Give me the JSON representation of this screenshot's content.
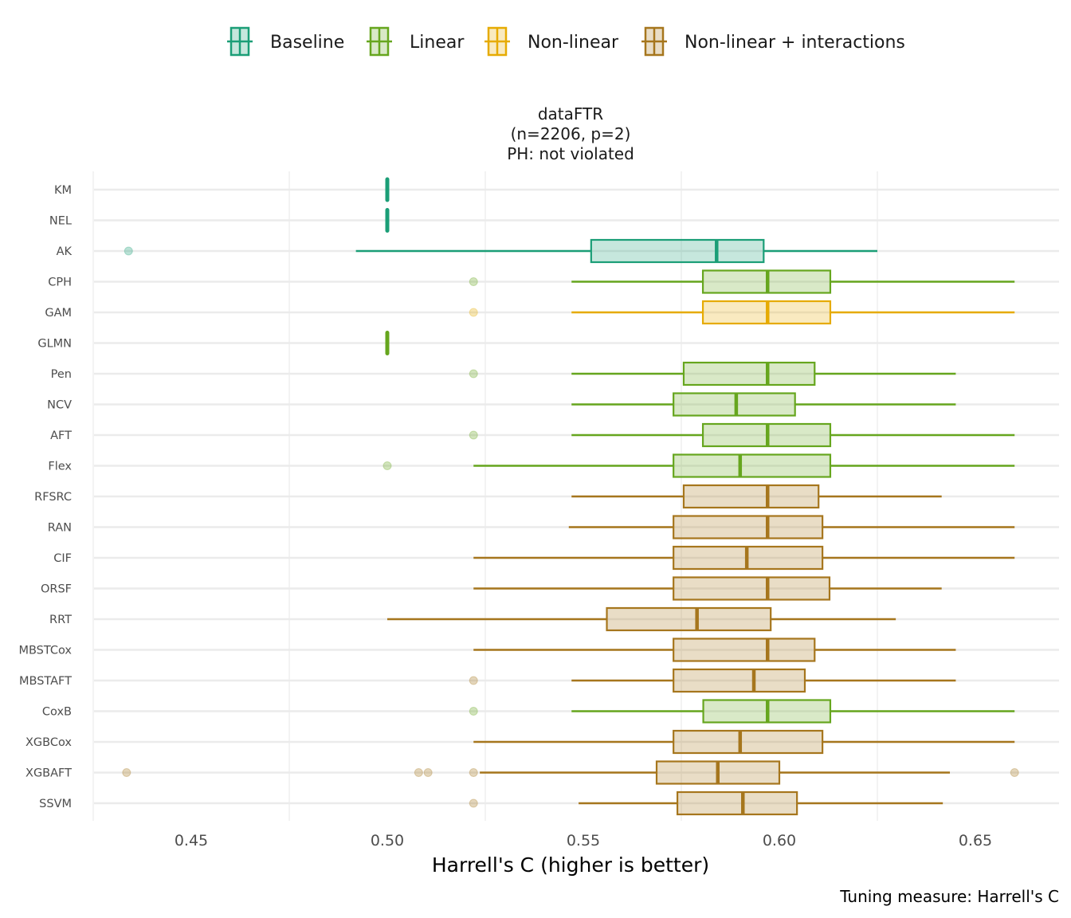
{
  "chart_data": {
    "type": "boxplot",
    "orientation": "horizontal",
    "title": "dataFTR",
    "subtitle_lines": [
      "dataFTR",
      "(n=2206, p=2)",
      "PH: not violated"
    ],
    "xlabel": "Harrell's C (higher is better)",
    "ylabel": "",
    "caption": "Tuning measure: Harrell's C",
    "xlim": [
      0.421,
      0.668
    ],
    "xticks": [
      0.45,
      0.5,
      0.55,
      0.6,
      0.65
    ],
    "xtick_labels": [
      "0.45",
      "0.50",
      "0.55",
      "0.60",
      "0.65"
    ],
    "x_gridlines": [
      0.425,
      0.475,
      0.525,
      0.575,
      0.625
    ],
    "grid": true,
    "legend_position": "top",
    "legend": [
      {
        "name": "Baseline",
        "color": "#1b9e77"
      },
      {
        "name": "Linear",
        "color": "#66a61e"
      },
      {
        "name": "Non-linear",
        "color": "#e6ab02"
      },
      {
        "name": "Non-linear + interactions",
        "color": "#a6761d"
      }
    ],
    "categories": [
      "KM",
      "NEL",
      "AK",
      "CPH",
      "GAM",
      "GLMN",
      "Pen",
      "NCV",
      "AFT",
      "Flex",
      "RFSRC",
      "RAN",
      "CIF",
      "ORSF",
      "RRT",
      "MBSTCox",
      "MBSTAFT",
      "CoxB",
      "XGBCox",
      "XGBAFT",
      "SSVM"
    ],
    "boxes": [
      {
        "model": "KM",
        "group": "Baseline",
        "whisker_low": 0.5,
        "q1": 0.5,
        "median": 0.5,
        "q3": 0.5,
        "whisker_high": 0.5,
        "outliers": []
      },
      {
        "model": "NEL",
        "group": "Baseline",
        "whisker_low": 0.5,
        "q1": 0.5,
        "median": 0.5,
        "q3": 0.5,
        "whisker_high": 0.5,
        "outliers": []
      },
      {
        "model": "AK",
        "group": "Baseline",
        "whisker_low": 0.492,
        "q1": 0.552,
        "median": 0.584,
        "q3": 0.596,
        "whisker_high": 0.625,
        "outliers": [
          0.434
        ]
      },
      {
        "model": "CPH",
        "group": "Linear",
        "whisker_low": 0.547,
        "q1": 0.5805,
        "median": 0.597,
        "q3": 0.613,
        "whisker_high": 0.66,
        "outliers": [
          0.522
        ]
      },
      {
        "model": "GAM",
        "group": "Non-linear",
        "whisker_low": 0.547,
        "q1": 0.5805,
        "median": 0.597,
        "q3": 0.613,
        "whisker_high": 0.66,
        "outliers": [
          0.522
        ]
      },
      {
        "model": "GLMN",
        "group": "Linear",
        "whisker_low": 0.5,
        "q1": 0.5,
        "median": 0.5,
        "q3": 0.5,
        "whisker_high": 0.5,
        "outliers": []
      },
      {
        "model": "Pen",
        "group": "Linear",
        "whisker_low": 0.547,
        "q1": 0.5756,
        "median": 0.597,
        "q3": 0.609,
        "whisker_high": 0.645,
        "outliers": [
          0.522
        ]
      },
      {
        "model": "NCV",
        "group": "Linear",
        "whisker_low": 0.547,
        "q1": 0.573,
        "median": 0.589,
        "q3": 0.604,
        "whisker_high": 0.645,
        "outliers": []
      },
      {
        "model": "AFT",
        "group": "Linear",
        "whisker_low": 0.547,
        "q1": 0.5805,
        "median": 0.597,
        "q3": 0.613,
        "whisker_high": 0.66,
        "outliers": [
          0.522
        ]
      },
      {
        "model": "Flex",
        "group": "Linear",
        "whisker_low": 0.522,
        "q1": 0.573,
        "median": 0.59,
        "q3": 0.613,
        "whisker_high": 0.66,
        "outliers": [
          0.5
        ]
      },
      {
        "model": "RFSRC",
        "group": "Non-linear + interactions",
        "whisker_low": 0.547,
        "q1": 0.5756,
        "median": 0.597,
        "q3": 0.61,
        "whisker_high": 0.6414,
        "outliers": []
      },
      {
        "model": "RAN",
        "group": "Non-linear + interactions",
        "whisker_low": 0.5463,
        "q1": 0.573,
        "median": 0.597,
        "q3": 0.611,
        "whisker_high": 0.66,
        "outliers": []
      },
      {
        "model": "CIF",
        "group": "Non-linear + interactions",
        "whisker_low": 0.522,
        "q1": 0.573,
        "median": 0.5917,
        "q3": 0.611,
        "whisker_high": 0.66,
        "outliers": []
      },
      {
        "model": "ORSF",
        "group": "Non-linear + interactions",
        "whisker_low": 0.522,
        "q1": 0.573,
        "median": 0.597,
        "q3": 0.6128,
        "whisker_high": 0.6414,
        "outliers": []
      },
      {
        "model": "RRT",
        "group": "Non-linear + interactions",
        "whisker_low": 0.5,
        "q1": 0.556,
        "median": 0.579,
        "q3": 0.5978,
        "whisker_high": 0.6297,
        "outliers": []
      },
      {
        "model": "MBSTCox",
        "group": "Non-linear + interactions",
        "whisker_low": 0.522,
        "q1": 0.573,
        "median": 0.597,
        "q3": 0.609,
        "whisker_high": 0.645,
        "outliers": []
      },
      {
        "model": "MBSTAFT",
        "group": "Non-linear + interactions",
        "whisker_low": 0.547,
        "q1": 0.573,
        "median": 0.5935,
        "q3": 0.6065,
        "whisker_high": 0.645,
        "outliers": [
          0.522
        ]
      },
      {
        "model": "CoxB",
        "group": "Linear",
        "whisker_low": 0.547,
        "q1": 0.5806,
        "median": 0.597,
        "q3": 0.613,
        "whisker_high": 0.66,
        "outliers": [
          0.522
        ]
      },
      {
        "model": "XGBCox",
        "group": "Non-linear + interactions",
        "whisker_low": 0.522,
        "q1": 0.573,
        "median": 0.59,
        "q3": 0.611,
        "whisker_high": 0.66,
        "outliers": []
      },
      {
        "model": "XGBAFT",
        "group": "Non-linear + interactions",
        "whisker_low": 0.5236,
        "q1": 0.5687,
        "median": 0.5843,
        "q3": 0.6,
        "whisker_high": 0.6435,
        "outliers": [
          0.4335,
          0.508,
          0.5104,
          0.522,
          0.66
        ]
      },
      {
        "model": "SSVM",
        "group": "Non-linear + interactions",
        "whisker_low": 0.5488,
        "q1": 0.574,
        "median": 0.5907,
        "q3": 0.6045,
        "whisker_high": 0.6417,
        "outliers": [
          0.522
        ]
      }
    ]
  }
}
